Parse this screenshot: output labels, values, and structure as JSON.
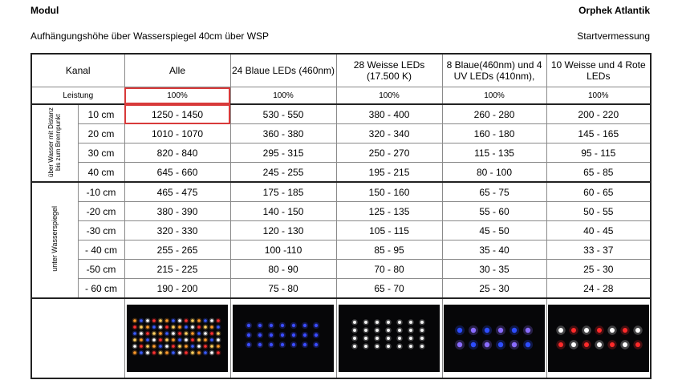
{
  "header": {
    "left": "Modul",
    "right": "Orphek Atlantik",
    "sub_left": "Aufhängungshöhe über Wasserspiegel 40cm über WSP",
    "sub_right": "Startvermessung"
  },
  "table": {
    "corner": "Kanal",
    "columns": [
      "Alle",
      "24 Blaue LEDs (460nm)",
      "28 Weisse LEDs (17.500 K)",
      "8 Blaue(460nm) und 4 UV LEDs (410nm),",
      "10 Weisse und 4 Rote LEDs"
    ],
    "leistung_label": "Leistung",
    "leistung": [
      "100%",
      "100%",
      "100%",
      "100%",
      "100%"
    ],
    "group_above": "über Wasser mit Distanz bis zum Brennpunkt",
    "group_below": "unter Wasserspiegel",
    "rows_above": [
      {
        "label": "10 cm",
        "values": [
          "1250 - 1450",
          "530 - 550",
          "380 - 400",
          "260 - 280",
          "200 - 220"
        ]
      },
      {
        "label": "20 cm",
        "values": [
          "1010 - 1070",
          "360 - 380",
          "320 - 340",
          "160 - 180",
          "145 - 165"
        ]
      },
      {
        "label": "30 cm",
        "values": [
          "820 - 840",
          "295 - 315",
          "250 - 270",
          "115 - 135",
          "95 - 115"
        ]
      },
      {
        "label": "40 cm",
        "values": [
          "645 - 660",
          "245 - 255",
          "195 - 215",
          "80 - 100",
          "65 - 85"
        ]
      }
    ],
    "rows_below": [
      {
        "label": "-10 cm",
        "values": [
          "465 - 475",
          "175 - 185",
          "150 - 160",
          "65 - 75",
          "60 - 65"
        ]
      },
      {
        "label": "-20 cm",
        "values": [
          "380 - 390",
          "140 - 150",
          "125 - 135",
          "55 - 60",
          "50 - 55"
        ]
      },
      {
        "label": "-30 cm",
        "values": [
          "320 - 330",
          "120 - 130",
          "105 - 115",
          "45 - 50",
          "40 - 45"
        ]
      },
      {
        "label": "- 40 cm",
        "values": [
          "255 - 265",
          "100 -110",
          "85 - 95",
          "35 - 40",
          "33 - 37"
        ]
      },
      {
        "label": "-50 cm",
        "values": [
          "215 - 225",
          "80 - 90",
          "70 - 80",
          "30 - 35",
          "25 - 30"
        ]
      },
      {
        "label": "- 60 cm",
        "values": [
          "190 - 200",
          "75 - 80",
          "65 - 70",
          "25 - 30",
          "24 - 28"
        ]
      }
    ]
  },
  "photos": [
    {
      "name": "photo-alle",
      "colors": [
        "#ff9a2a",
        "#3a5cff",
        "#ffffff",
        "#ff3030",
        "#ffd060"
      ]
    },
    {
      "name": "photo-blaue",
      "colors": [
        "#3a4cff"
      ]
    },
    {
      "name": "photo-weisse",
      "colors": [
        "#f2f2f2"
      ]
    },
    {
      "name": "photo-blau-uv",
      "colors": [
        "#2d4dff",
        "#8a6cff"
      ]
    },
    {
      "name": "photo-weiss-rot",
      "colors": [
        "#ffffff",
        "#ff2a2a"
      ]
    }
  ]
}
